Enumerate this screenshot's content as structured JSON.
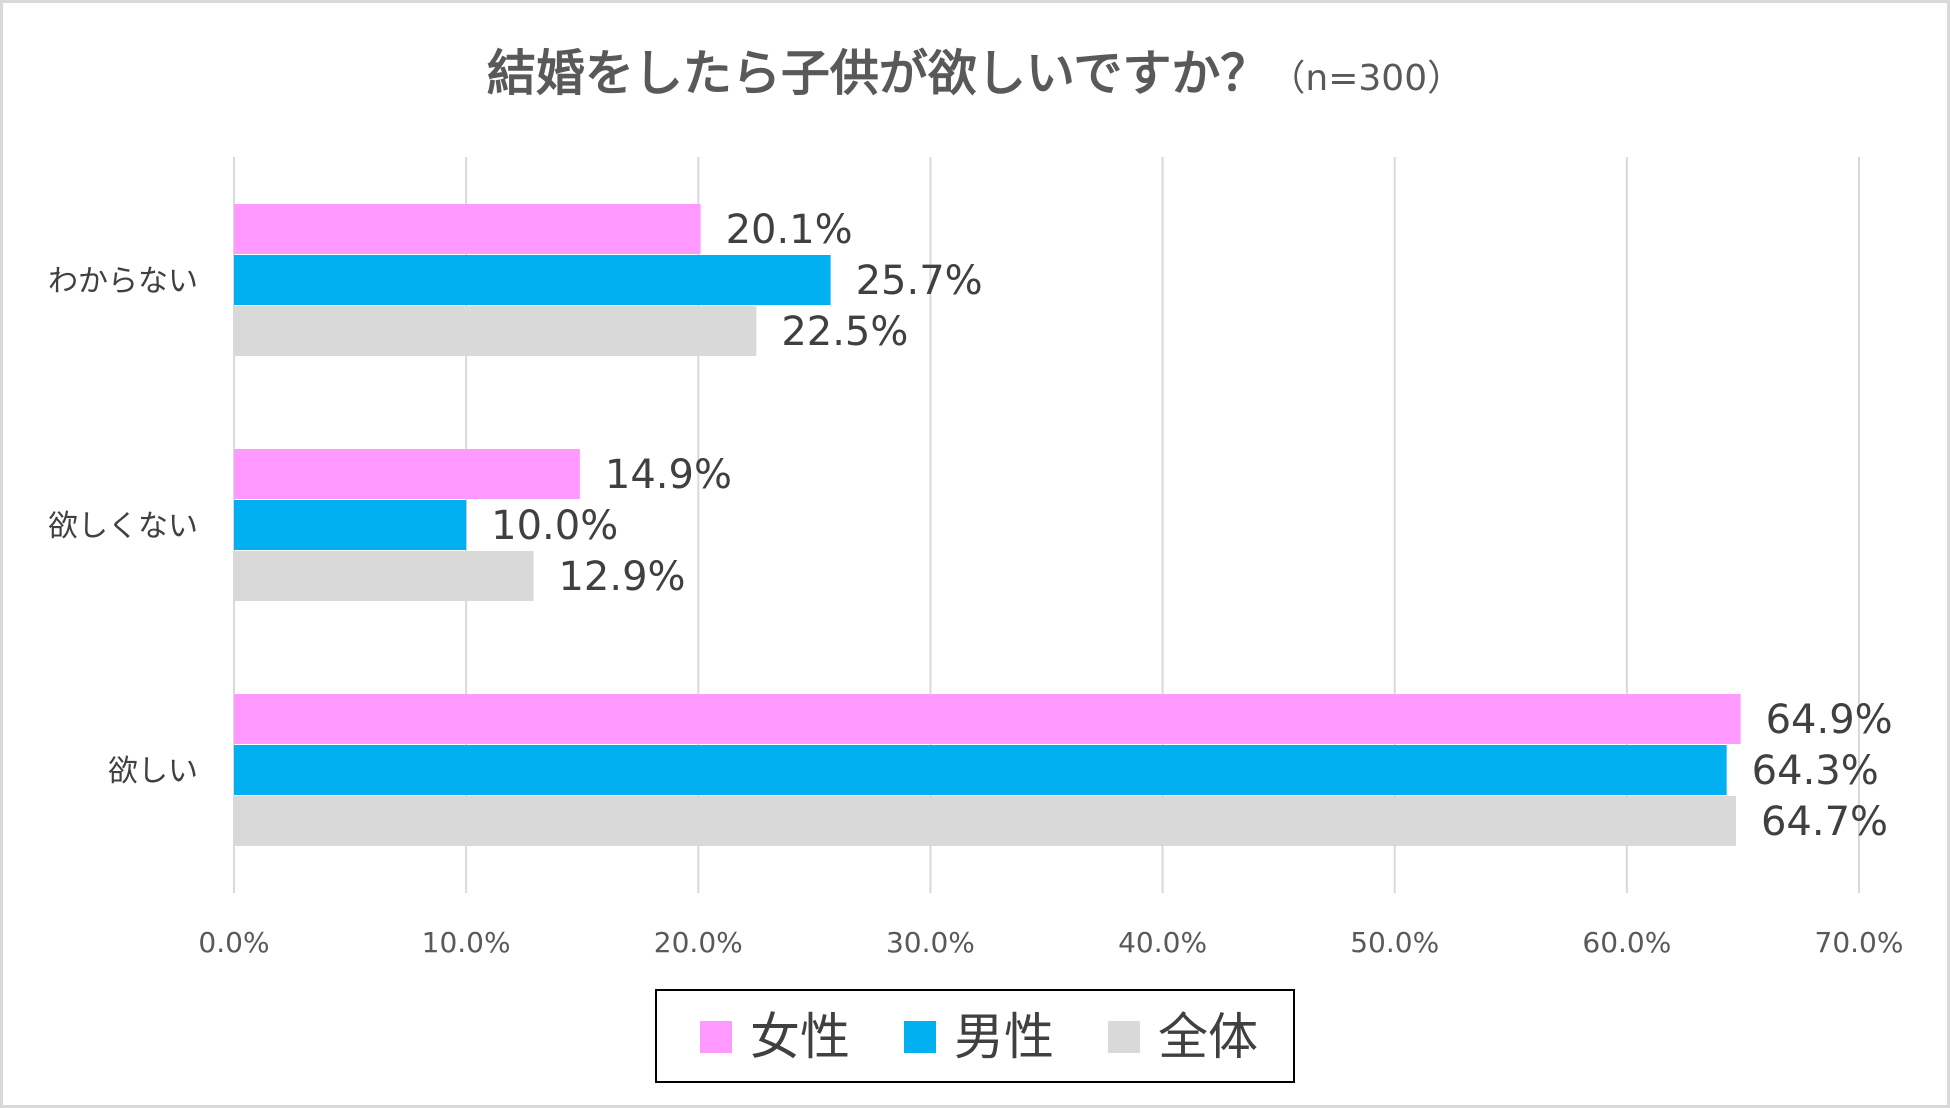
{
  "chart_data": {
    "type": "bar",
    "orientation": "horizontal",
    "title": "結婚をしたら子供が欲しいですか？",
    "subtitle": "（n=300）",
    "categories": [
      "わからない",
      "欲しくない",
      "欲しい"
    ],
    "series": [
      {
        "name": "女性",
        "color": "#FF99FF",
        "values": [
          20.1,
          14.9,
          64.9
        ],
        "labels": [
          "20.1%",
          "14.9%",
          "64.9%"
        ]
      },
      {
        "name": "男性",
        "color": "#00B0F0",
        "values": [
          25.7,
          10.0,
          64.3
        ],
        "labels": [
          "25.7%",
          "10.0%",
          "64.3%"
        ]
      },
      {
        "name": "全体",
        "color": "#D9D9D9",
        "values": [
          22.5,
          12.9,
          64.7
        ],
        "labels": [
          "22.5%",
          "12.9%",
          "64.7%"
        ]
      }
    ],
    "xlim": [
      0,
      70
    ],
    "xticks": [
      0,
      10,
      20,
      30,
      40,
      50,
      60,
      70
    ],
    "xtick_labels": [
      "0.0%",
      "10.0%",
      "20.0%",
      "30.0%",
      "40.0%",
      "50.0%",
      "60.0%",
      "70.0%"
    ],
    "grid": true,
    "legend_position": "bottom"
  },
  "colors": {
    "grid": "#D9D9D9",
    "border": "#D9D9D9",
    "legend_border": "#000000"
  }
}
